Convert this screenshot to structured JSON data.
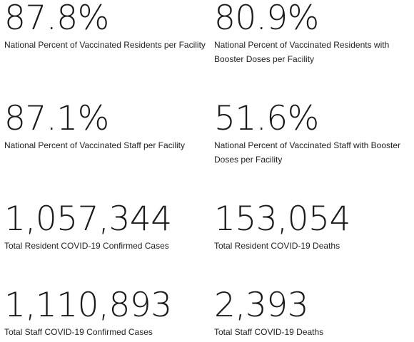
{
  "stats": [
    {
      "value": "87.8%",
      "label": "National Percent of Vaccinated Residents per Facility"
    },
    {
      "value": "80.9%",
      "label": "National Percent of Vaccinated Residents with Booster Doses per Facility"
    },
    {
      "value": "87.1%",
      "label": "National Percent of Vaccinated Staff per Facility"
    },
    {
      "value": "51.6%",
      "label": "National Percent of Vaccinated Staff with Booster Doses per Facility"
    },
    {
      "value": "1,057,344",
      "label": "Total Resident COVID-19 Confirmed Cases"
    },
    {
      "value": "153,054",
      "label": "Total Resident COVID-19 Deaths"
    },
    {
      "value": "1,110,893",
      "label": "Total Staff COVID-19 Confirmed Cases"
    },
    {
      "value": "2,393",
      "label": "Total Staff COVID-19 Deaths"
    }
  ]
}
